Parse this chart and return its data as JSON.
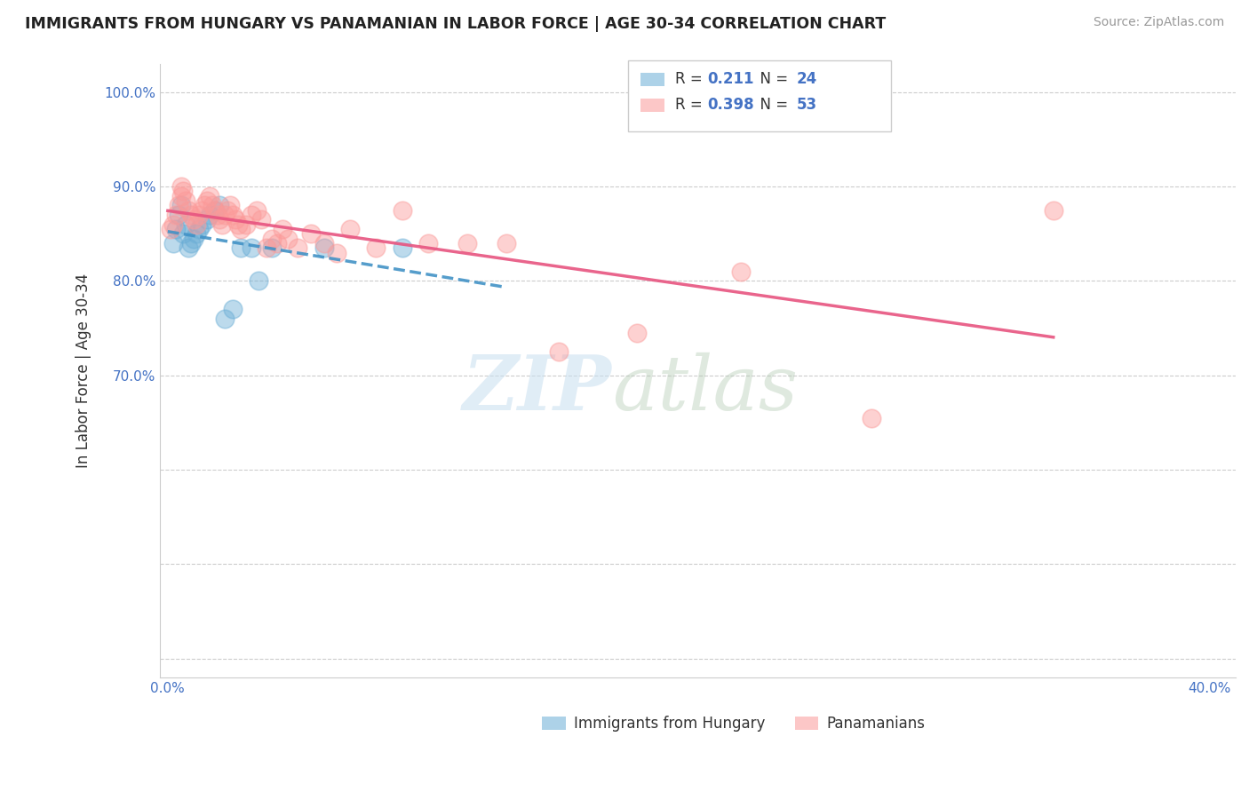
{
  "title": "IMMIGRANTS FROM HUNGARY VS PANAMANIAN IN LABOR FORCE | AGE 30-34 CORRELATION CHART",
  "source": "Source: ZipAtlas.com",
  "ylabel": "In Labor Force | Age 30-34",
  "hungary_color": "#6baed6",
  "panama_color": "#fb9a99",
  "trendline_hungary_color": "#4292c6",
  "trendline_panama_color": "#e75480",
  "R_hungary": 0.211,
  "N_hungary": 24,
  "R_panama": 0.398,
  "N_panama": 53,
  "watermark_zip": "ZIP",
  "watermark_atlas": "atlas",
  "xlim": [
    -0.003,
    0.41
  ],
  "ylim": [
    0.38,
    1.03
  ],
  "xtick_positions": [
    0.0,
    0.05,
    0.1,
    0.15,
    0.2,
    0.25,
    0.3,
    0.35,
    0.4
  ],
  "xtick_labels": [
    "0.0%",
    "",
    "",
    "",
    "",
    "",
    "",
    "",
    "40.0%"
  ],
  "ytick_positions": [
    0.4,
    0.5,
    0.6,
    0.7,
    0.8,
    0.9,
    1.0
  ],
  "ytick_labels": [
    "",
    "",
    "",
    "70.0%",
    "80.0%",
    "90.0%",
    "100.0%"
  ],
  "hungary_x": [
    0.002,
    0.003,
    0.004,
    0.005,
    0.006,
    0.007,
    0.008,
    0.009,
    0.01,
    0.011,
    0.012,
    0.013,
    0.015,
    0.016,
    0.018,
    0.02,
    0.022,
    0.025,
    0.028,
    0.032,
    0.035,
    0.04,
    0.06,
    0.09
  ],
  "hungary_y": [
    0.84,
    0.855,
    0.87,
    0.88,
    0.85,
    0.86,
    0.835,
    0.84,
    0.845,
    0.85,
    0.855,
    0.86,
    0.865,
    0.87,
    0.875,
    0.88,
    0.76,
    0.77,
    0.835,
    0.835,
    0.8,
    0.835,
    0.835,
    0.835
  ],
  "panama_x": [
    0.001,
    0.002,
    0.003,
    0.004,
    0.005,
    0.005,
    0.006,
    0.007,
    0.008,
    0.009,
    0.01,
    0.011,
    0.012,
    0.013,
    0.014,
    0.015,
    0.016,
    0.017,
    0.018,
    0.019,
    0.02,
    0.021,
    0.022,
    0.023,
    0.024,
    0.025,
    0.026,
    0.027,
    0.028,
    0.03,
    0.032,
    0.034,
    0.036,
    0.038,
    0.04,
    0.042,
    0.044,
    0.046,
    0.05,
    0.055,
    0.06,
    0.065,
    0.07,
    0.08,
    0.09,
    0.1,
    0.115,
    0.13,
    0.15,
    0.18,
    0.22,
    0.27,
    0.34
  ],
  "panama_y": [
    0.855,
    0.86,
    0.87,
    0.88,
    0.89,
    0.9,
    0.895,
    0.885,
    0.875,
    0.87,
    0.865,
    0.86,
    0.87,
    0.875,
    0.88,
    0.885,
    0.89,
    0.88,
    0.875,
    0.87,
    0.865,
    0.86,
    0.87,
    0.875,
    0.88,
    0.87,
    0.865,
    0.86,
    0.855,
    0.86,
    0.87,
    0.875,
    0.865,
    0.835,
    0.845,
    0.84,
    0.855,
    0.845,
    0.835,
    0.85,
    0.84,
    0.83,
    0.855,
    0.835,
    0.875,
    0.84,
    0.84,
    0.84,
    0.725,
    0.745,
    0.81,
    0.655,
    0.875
  ]
}
